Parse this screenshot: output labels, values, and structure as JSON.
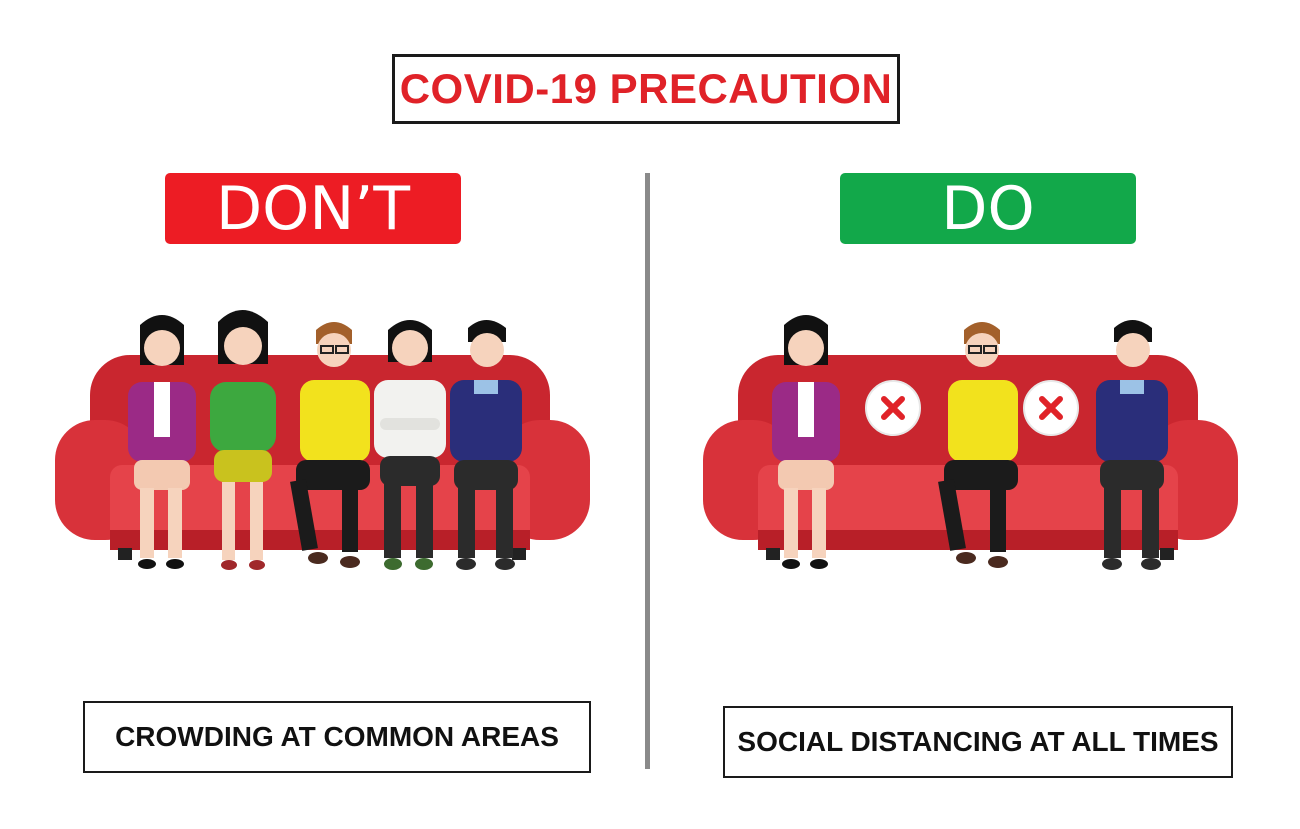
{
  "title": "COVID-19 PRECAUTION",
  "dont": {
    "label": "DON’T",
    "caption": "CROWDING AT COMMON AREAS",
    "banner_color": "#ed1c24"
  },
  "do": {
    "label": "DO",
    "caption": "SOCIAL DISTANCING AT ALL TIMES",
    "banner_color": "#12a84a",
    "seat_marker_icon": "x-mark-icon"
  },
  "colors": {
    "title_red": "#e02228",
    "sofa_red": "#d8323a",
    "divider_gray": "#8a8a8a"
  }
}
